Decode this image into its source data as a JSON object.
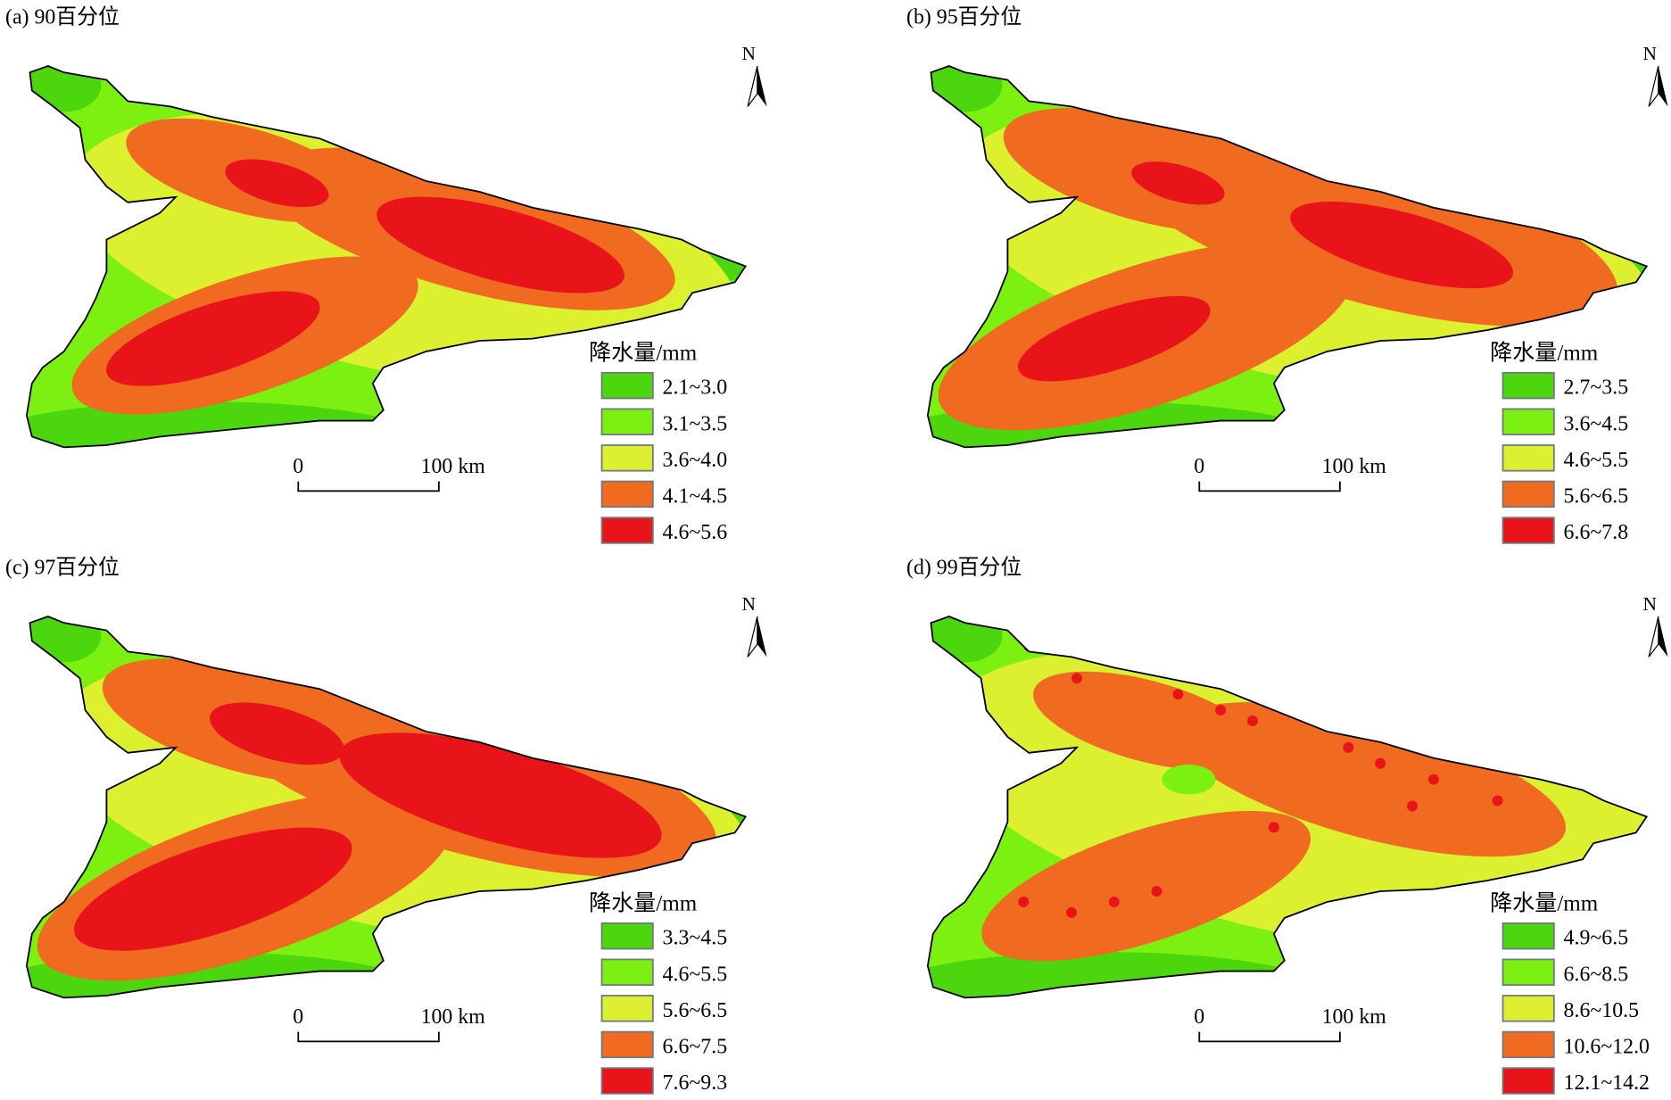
{
  "colors": [
    "#4cd60e",
    "#7cf010",
    "#dcf030",
    "#f06a20",
    "#e8141a"
  ],
  "north_label": "N",
  "scale_bar": {
    "start": "0",
    "end": "100 km"
  },
  "panels": [
    {
      "title": "(a) 90百分位",
      "legend_title": "降水量/mm",
      "classes": [
        "2.1~3.0",
        "3.1~3.5",
        "3.6~4.0",
        "4.1~4.5",
        "4.6~5.6"
      ]
    },
    {
      "title": "(b) 95百分位",
      "legend_title": "降水量/mm",
      "classes": [
        "2.7~3.5",
        "3.6~4.5",
        "4.6~5.5",
        "5.6~6.5",
        "6.6~7.8"
      ]
    },
    {
      "title": "(c) 97百分位",
      "legend_title": "降水量/mm",
      "classes": [
        "3.3~4.5",
        "4.6~5.5",
        "5.6~6.5",
        "6.6~7.5",
        "7.6~9.3"
      ]
    },
    {
      "title": "(d) 99百分位",
      "legend_title": "降水量/mm",
      "classes": [
        "4.9~6.5",
        "6.6~8.5",
        "8.6~10.5",
        "10.6~12.0",
        "12.1~14.2"
      ]
    }
  ]
}
